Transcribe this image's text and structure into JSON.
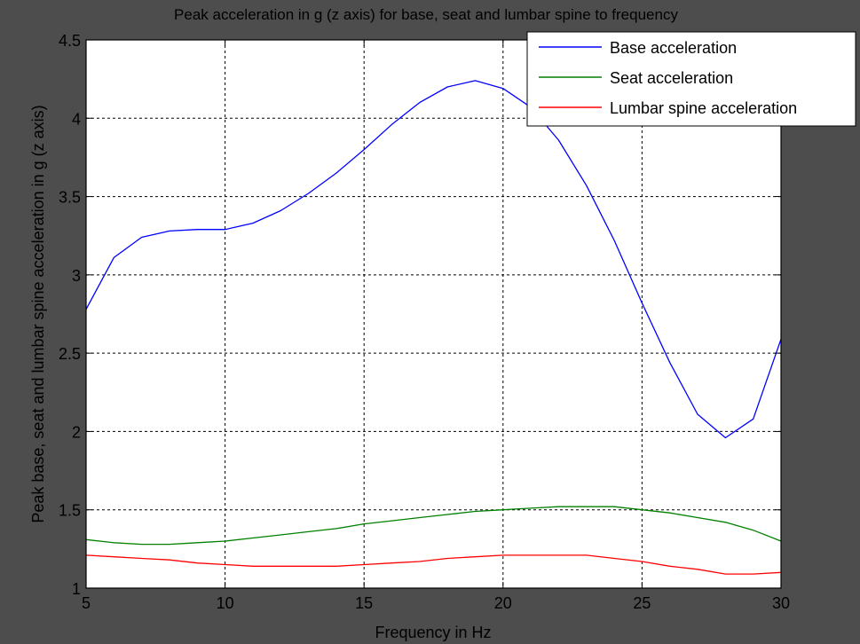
{
  "chart_data": {
    "type": "line",
    "title": "Peak acceleration in g (z axis) for base, seat and lumbar spine to frequency",
    "xlabel": "Frequency in Hz",
    "ylabel": "Peak base, seat and lumbar spine acceleration in g (z axis)",
    "xlim": [
      5,
      30
    ],
    "ylim": [
      1,
      4.5
    ],
    "xticks": [
      5,
      10,
      15,
      20,
      25,
      30
    ],
    "yticks": [
      1,
      1.5,
      2,
      2.5,
      3,
      3.5,
      4,
      4.5
    ],
    "grid": true,
    "legend_position": "top-right",
    "x": [
      5,
      6,
      7,
      8,
      9,
      10,
      11,
      12,
      13,
      14,
      15,
      16,
      17,
      18,
      19,
      20,
      21,
      22,
      23,
      24,
      25,
      26,
      27,
      28,
      29,
      30
    ],
    "series": [
      {
        "name": "Base acceleration",
        "color": "#0000ff",
        "values": [
          2.78,
          3.11,
          3.24,
          3.28,
          3.29,
          3.29,
          3.33,
          3.41,
          3.52,
          3.65,
          3.8,
          3.96,
          4.1,
          4.2,
          4.24,
          4.19,
          4.07,
          3.86,
          3.57,
          3.22,
          2.82,
          2.44,
          2.11,
          1.96,
          2.08,
          2.59
        ]
      },
      {
        "name": "Seat acceleration",
        "color": "#008000",
        "values": [
          1.31,
          1.29,
          1.28,
          1.28,
          1.29,
          1.3,
          1.32,
          1.34,
          1.36,
          1.38,
          1.41,
          1.43,
          1.45,
          1.47,
          1.49,
          1.5,
          1.51,
          1.52,
          1.52,
          1.52,
          1.5,
          1.48,
          1.45,
          1.42,
          1.37,
          1.3
        ]
      },
      {
        "name": "Lumbar spine acceleration",
        "color": "#ff0000",
        "values": [
          1.21,
          1.2,
          1.19,
          1.18,
          1.16,
          1.15,
          1.14,
          1.14,
          1.14,
          1.14,
          1.15,
          1.16,
          1.17,
          1.19,
          1.2,
          1.21,
          1.21,
          1.21,
          1.21,
          1.19,
          1.17,
          1.14,
          1.12,
          1.09,
          1.09,
          1.1
        ]
      }
    ]
  }
}
